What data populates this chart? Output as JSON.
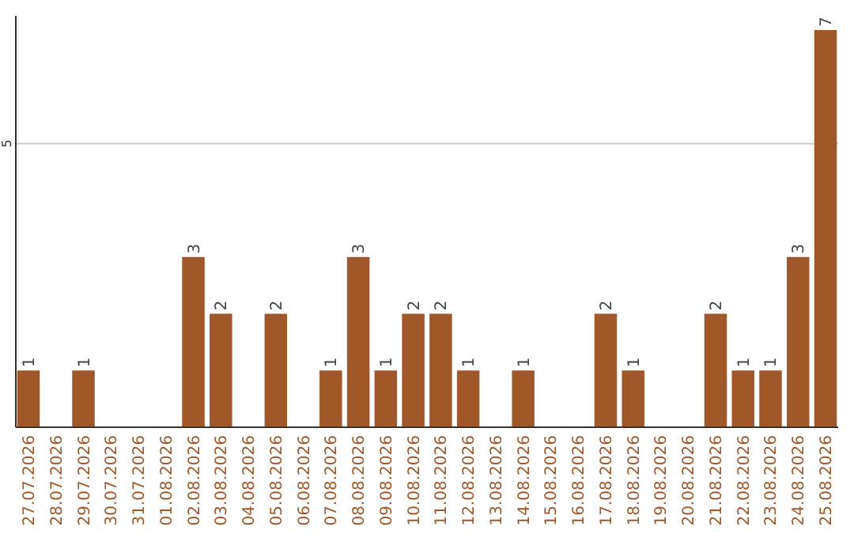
{
  "chart_data": {
    "type": "bar",
    "categories": [
      "27.07.2026",
      "28.07.2026",
      "29.07.2026",
      "30.07.2026",
      "31.07.2026",
      "01.08.2026",
      "02.08.2026",
      "03.08.2026",
      "04.08.2026",
      "05.08.2026",
      "06.08.2026",
      "07.08.2026",
      "08.08.2026",
      "09.08.2026",
      "10.08.2026",
      "11.08.2026",
      "12.08.2026",
      "13.08.2026",
      "14.08.2026",
      "15.08.2026",
      "16.08.2026",
      "17.08.2026",
      "18.08.2026",
      "19.08.2026",
      "20.08.2026",
      "21.08.2026",
      "22.08.2026",
      "23.08.2026",
      "24.08.2026",
      "25.08.2026"
    ],
    "values": [
      1,
      0,
      1,
      0,
      0,
      0,
      3,
      2,
      0,
      2,
      0,
      1,
      3,
      1,
      2,
      2,
      1,
      0,
      1,
      0,
      0,
      2,
      1,
      0,
      0,
      2,
      1,
      1,
      3,
      7
    ],
    "value_labels": [
      "1",
      null,
      "1",
      null,
      null,
      null,
      "3",
      "2",
      null,
      "2",
      null,
      "1",
      "3",
      "1",
      "2",
      "2",
      "1",
      null,
      "1",
      null,
      null,
      "2",
      "1",
      null,
      null,
      "2",
      "1",
      "1",
      "3",
      "7"
    ],
    "color": "#a0582a",
    "ylim": [
      0,
      7.25
    ],
    "yticks": [
      5
    ],
    "grid": "y"
  }
}
